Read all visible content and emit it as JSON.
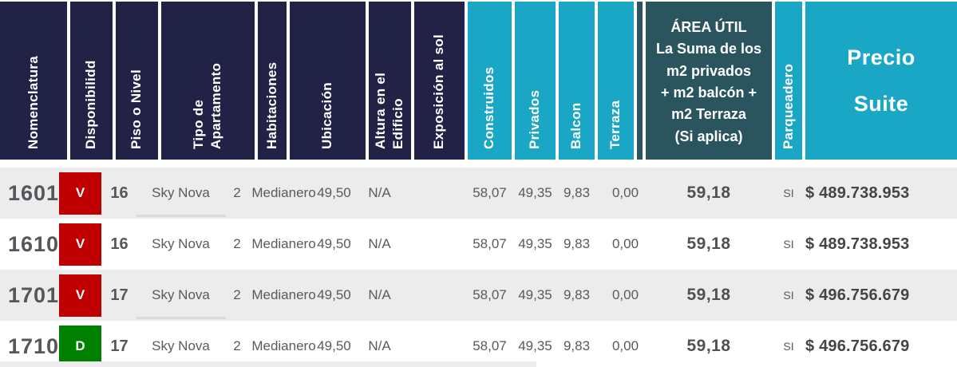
{
  "colors": {
    "header_navy": "#212246",
    "header_cyan": "#1AA7C5",
    "header_teal": "#2A545E",
    "badge_red": "#C00000",
    "badge_green": "#008000",
    "row_stripe_gray": "#ECECEC",
    "text_gray": "#5A5A5A"
  },
  "header": {
    "columns": [
      {
        "label": "Nomenclatura"
      },
      {
        "label": "Disponibilidd"
      },
      {
        "label": "Piso o Nivel"
      },
      {
        "label": "Tipo de\nApartamento"
      },
      {
        "label": "Habitaciones"
      },
      {
        "label": "Ubicación"
      },
      {
        "label": "Altura en el\nEdificio"
      },
      {
        "label": "Exposición al sol"
      },
      {
        "label": "Construidos"
      },
      {
        "label": "Privados"
      },
      {
        "label": "Balcon"
      },
      {
        "label": "Terraza"
      },
      {
        "label": "ÁREA ÚTIL\nLa Suma de los\nm2 privados\n+ m2 balcón +\nm2 Terraza\n(Si aplica)"
      },
      {
        "label": "Parqueadero"
      },
      {
        "label": "Precio\nSuite"
      }
    ]
  },
  "rows": [
    {
      "cells": [
        "1601",
        "V",
        "16",
        "Sky Nova",
        "2",
        "Medianero",
        "49,50",
        "N/A",
        "58,07",
        "49,35",
        "9,83",
        "0,00",
        "59,18",
        "SI",
        "$ 489.738.953"
      ]
    },
    {
      "cells": [
        "1610",
        "V",
        "16",
        "Sky Nova",
        "2",
        "Medianero",
        "49,50",
        "N/A",
        "58,07",
        "49,35",
        "9,83",
        "0,00",
        "59,18",
        "SI",
        "$ 489.738.953"
      ]
    },
    {
      "cells": [
        "1701",
        "V",
        "17",
        "Sky Nova",
        "2",
        "Medianero",
        "49,50",
        "N/A",
        "58,07",
        "49,35",
        "9,83",
        "0,00",
        "59,18",
        "SI",
        "$ 496.756.679"
      ]
    },
    {
      "cells": [
        "1710",
        "D",
        "17",
        "Sky Nova",
        "2",
        "Medianero",
        "49,50",
        "N/A",
        "58,07",
        "49,35",
        "9,83",
        "0,00",
        "59,18",
        "SI",
        "$ 496.756.679"
      ]
    }
  ]
}
